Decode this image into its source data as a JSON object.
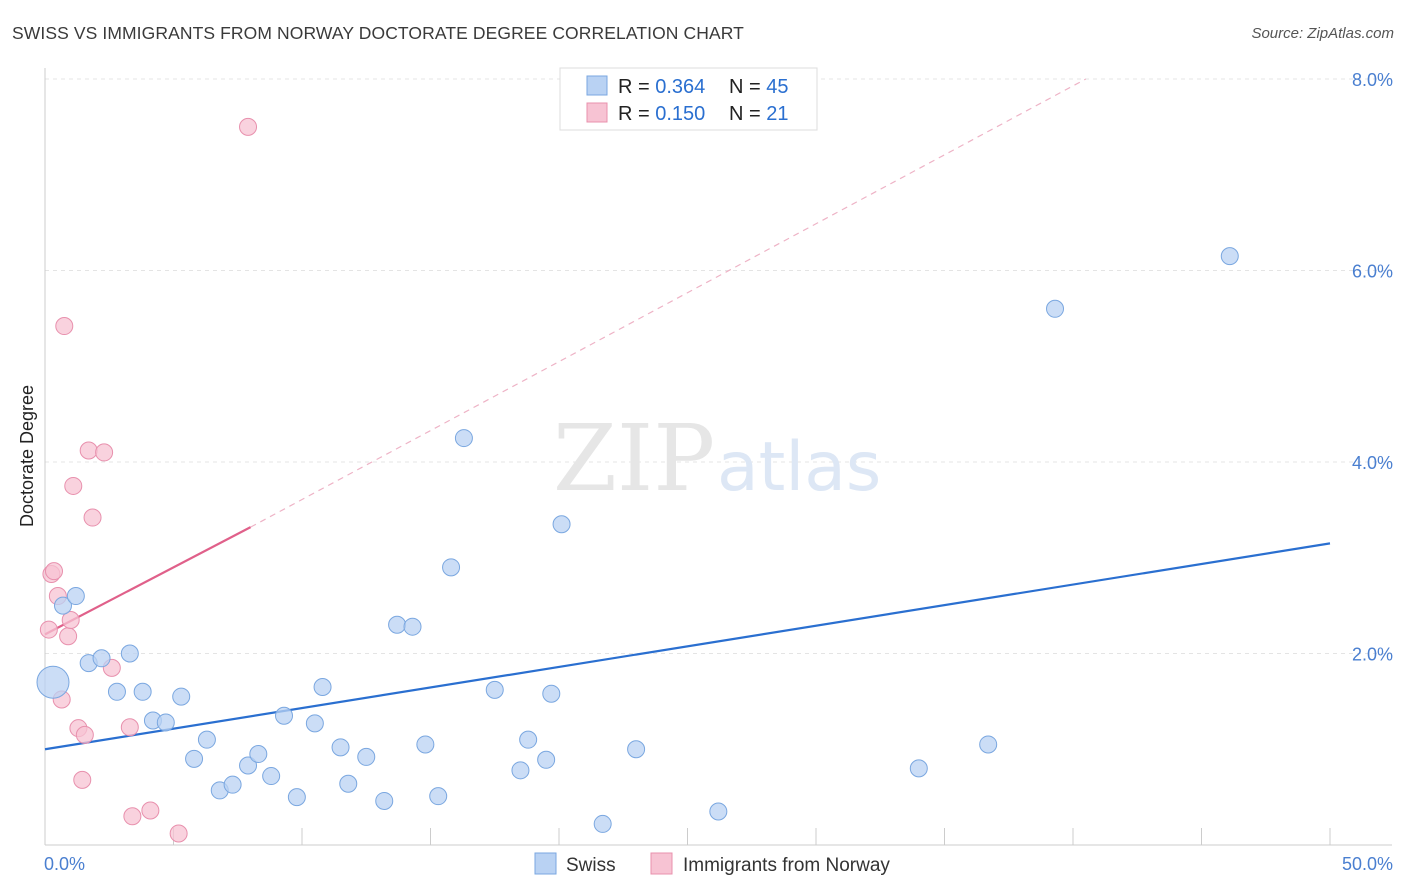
{
  "title": "SWISS VS IMMIGRANTS FROM NORWAY DOCTORATE DEGREE CORRELATION CHART",
  "source": "Source: ZipAtlas.com",
  "watermark": {
    "zip": "ZIP",
    "atlas": "atlas"
  },
  "colors": {
    "swiss_fill": "#b9d2f3",
    "swiss_stroke": "#7aa7e0",
    "swiss_line": "#2a6fd0",
    "norway_fill": "#f7c3d3",
    "norway_stroke": "#e890ad",
    "norway_line": "#e0608a",
    "grid": "#e4e4e4",
    "tick_label": "#4a7fd0"
  },
  "legend": {
    "rows": [
      {
        "r_label": "R = ",
        "r_value": "0.364",
        "n_label": "N = ",
        "n_value": "45"
      },
      {
        "r_label": "R = ",
        "r_value": "0.150",
        "n_label": "N = ",
        "n_value": "21"
      }
    ]
  },
  "chart_data": {
    "type": "scatter",
    "title": "SWISS VS IMMIGRANTS FROM NORWAY DOCTORATE DEGREE CORRELATION CHART",
    "xlabel": "",
    "ylabel": "Doctorate Degree",
    "xlim": [
      0,
      50
    ],
    "ylim": [
      0,
      8.2
    ],
    "x_tick_labels": [
      "0.0%",
      "50.0%"
    ],
    "y_ticks": [
      2,
      4,
      6,
      8
    ],
    "y_tick_labels": [
      "2.0%",
      "4.0%",
      "6.0%",
      "8.0%"
    ],
    "grid": true,
    "legend_position": "top-center",
    "series": [
      {
        "name": "Swiss",
        "points": [
          [
            0.35,
            1.7,
            "large"
          ],
          [
            0.7,
            2.5
          ],
          [
            1.2,
            2.6
          ],
          [
            1.7,
            1.9
          ],
          [
            2.2,
            1.95
          ],
          [
            2.8,
            1.6
          ],
          [
            3.3,
            2.0
          ],
          [
            3.8,
            1.6
          ],
          [
            4.2,
            1.3
          ],
          [
            4.7,
            1.28
          ],
          [
            5.3,
            1.55
          ],
          [
            5.8,
            0.9
          ],
          [
            6.3,
            1.1
          ],
          [
            6.8,
            0.57
          ],
          [
            7.3,
            0.63
          ],
          [
            7.9,
            0.83
          ],
          [
            8.3,
            0.95
          ],
          [
            8.8,
            0.72
          ],
          [
            9.3,
            1.35
          ],
          [
            9.8,
            0.5
          ],
          [
            10.5,
            1.27
          ],
          [
            10.8,
            1.65
          ],
          [
            11.5,
            1.02
          ],
          [
            11.8,
            0.64
          ],
          [
            12.5,
            0.92
          ],
          [
            13.2,
            0.46
          ],
          [
            13.7,
            2.3
          ],
          [
            14.3,
            2.28
          ],
          [
            14.8,
            1.05
          ],
          [
            15.3,
            0.51
          ],
          [
            15.8,
            2.9
          ],
          [
            16.3,
            4.25
          ],
          [
            17.5,
            1.62
          ],
          [
            18.8,
            1.1
          ],
          [
            18.5,
            0.78
          ],
          [
            19.5,
            0.89
          ],
          [
            20.1,
            3.35
          ],
          [
            19.7,
            1.58
          ],
          [
            21.7,
            0.22
          ],
          [
            23.0,
            1.0
          ],
          [
            26.2,
            0.35
          ],
          [
            34.0,
            0.8
          ],
          [
            36.7,
            1.05
          ],
          [
            39.3,
            5.6
          ],
          [
            46.1,
            6.15
          ]
        ],
        "trend": {
          "x": [
            0,
            50
          ],
          "y": [
            1.0,
            3.15
          ]
        }
      },
      {
        "name": "Immigrants from Norway",
        "points": [
          [
            0.15,
            2.25
          ],
          [
            0.25,
            2.83
          ],
          [
            0.35,
            2.86
          ],
          [
            0.5,
            2.6
          ],
          [
            0.65,
            1.52
          ],
          [
            0.75,
            5.42
          ],
          [
            0.9,
            2.18
          ],
          [
            1.0,
            2.35
          ],
          [
            1.1,
            3.75
          ],
          [
            1.3,
            1.22
          ],
          [
            1.45,
            0.68
          ],
          [
            1.55,
            1.15
          ],
          [
            1.7,
            4.12
          ],
          [
            1.85,
            3.42
          ],
          [
            2.3,
            4.1
          ],
          [
            2.6,
            1.85
          ],
          [
            3.3,
            1.23
          ],
          [
            3.4,
            0.3
          ],
          [
            4.1,
            0.36
          ],
          [
            5.2,
            0.12
          ],
          [
            7.9,
            7.5
          ]
        ],
        "trend_solid": {
          "x": [
            0,
            8.0
          ],
          "y": [
            2.2,
            3.32
          ]
        },
        "trend_dashed": {
          "x": [
            8.0,
            40.5
          ],
          "y": [
            3.32,
            8.0
          ]
        }
      }
    ]
  },
  "bottom_legend": [
    {
      "label": "Swiss"
    },
    {
      "label": "Immigrants from Norway"
    }
  ]
}
